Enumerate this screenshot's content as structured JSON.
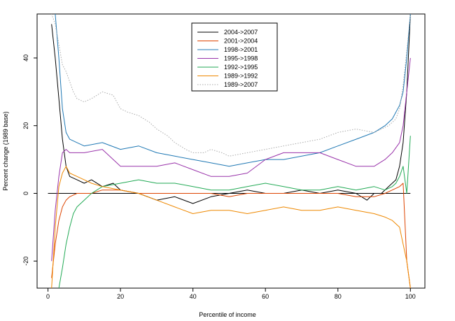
{
  "chart_data": {
    "type": "line",
    "title": "",
    "xlabel": "Percentile of income",
    "ylabel": "Percent change (1989 base)",
    "xlim": [
      -3,
      104
    ],
    "ylim": [
      -28,
      53
    ],
    "x_ticks": [
      0,
      20,
      40,
      60,
      80,
      100
    ],
    "y_ticks": [
      -20,
      0,
      20,
      40
    ],
    "grid": false,
    "legend_position": "top-center",
    "reference_line": 0,
    "series": [
      {
        "name": "2004->2007",
        "color": "#000000",
        "dash": "solid",
        "x": [
          1,
          2,
          3,
          4,
          5,
          6,
          8,
          10,
          12,
          15,
          18,
          20,
          25,
          30,
          35,
          40,
          45,
          50,
          55,
          60,
          65,
          70,
          75,
          80,
          85,
          88,
          90,
          92,
          94,
          96,
          97,
          98,
          99,
          100
        ],
        "y": [
          50,
          40,
          28,
          16,
          8,
          5,
          4,
          3,
          4,
          2,
          3,
          1,
          0,
          -2,
          -1,
          -3,
          -1,
          0,
          1,
          0,
          0,
          1,
          0,
          1,
          0,
          -2,
          0,
          0,
          2,
          4,
          8,
          15,
          30,
          53
        ]
      },
      {
        "name": "2001->2004",
        "color": "#dd4400",
        "dash": "solid",
        "x": [
          1,
          2,
          3,
          4,
          5,
          6,
          8,
          10,
          12,
          15,
          20,
          25,
          30,
          35,
          40,
          45,
          50,
          55,
          60,
          65,
          70,
          75,
          80,
          85,
          90,
          93,
          95,
          97,
          98,
          99,
          100
        ],
        "y": [
          -25,
          -15,
          -8,
          -4,
          -2,
          -1,
          0,
          0,
          0,
          1,
          1,
          0,
          0,
          0,
          0,
          0,
          -1,
          0,
          0,
          0,
          0,
          0,
          0,
          -1,
          -1,
          0,
          1,
          2,
          3,
          -20,
          -28
        ]
      },
      {
        "name": "1998->2001",
        "color": "#1f78b4",
        "dash": "solid",
        "x": [
          2,
          3,
          4,
          5,
          6,
          8,
          10,
          15,
          20,
          25,
          30,
          35,
          40,
          45,
          50,
          55,
          60,
          65,
          70,
          75,
          80,
          85,
          90,
          93,
          95,
          97,
          98,
          99,
          100
        ],
        "y": [
          53,
          40,
          25,
          18,
          16,
          15,
          14,
          15,
          13,
          14,
          12,
          11,
          10,
          9,
          8,
          9,
          10,
          10,
          11,
          12,
          14,
          16,
          18,
          20,
          22,
          26,
          30,
          40,
          53
        ]
      },
      {
        "name": "1995->1998",
        "color": "#9933aa",
        "dash": "solid",
        "x": [
          1,
          2,
          3,
          4,
          5,
          6,
          8,
          10,
          15,
          20,
          25,
          30,
          35,
          40,
          45,
          50,
          55,
          60,
          65,
          70,
          75,
          80,
          85,
          90,
          93,
          95,
          97,
          98,
          99,
          100
        ],
        "y": [
          -20,
          -5,
          5,
          12,
          13,
          12,
          12,
          12,
          13,
          8,
          8,
          8,
          9,
          7,
          5,
          5,
          6,
          10,
          12,
          12,
          12,
          10,
          8,
          8,
          10,
          12,
          15,
          20,
          30,
          40
        ]
      },
      {
        "name": "1992->1995",
        "color": "#22aa55",
        "dash": "solid",
        "x": [
          3,
          4,
          5,
          6,
          7,
          8,
          10,
          12,
          15,
          20,
          25,
          30,
          35,
          40,
          45,
          50,
          55,
          60,
          65,
          70,
          75,
          80,
          85,
          90,
          93,
          95,
          96,
          97,
          98,
          99,
          100
        ],
        "y": [
          -28,
          -22,
          -15,
          -10,
          -6,
          -4,
          -2,
          0,
          2,
          3,
          4,
          3,
          3,
          2,
          1,
          1,
          2,
          3,
          2,
          1,
          1,
          2,
          1,
          2,
          1,
          2,
          3,
          5,
          8,
          0,
          17
        ]
      },
      {
        "name": "1989->1992",
        "color": "#ee8800",
        "dash": "solid",
        "x": [
          1,
          2,
          3,
          4,
          5,
          6,
          8,
          10,
          12,
          15,
          20,
          25,
          30,
          35,
          40,
          45,
          50,
          55,
          60,
          65,
          70,
          75,
          80,
          85,
          90,
          93,
          95,
          97,
          98,
          99,
          100
        ],
        "y": [
          -28,
          -10,
          2,
          6,
          8,
          6,
          5,
          4,
          3,
          2,
          1,
          0,
          -2,
          -4,
          -6,
          -5,
          -5,
          -6,
          -5,
          -4,
          -5,
          -5,
          -4,
          -5,
          -6,
          -7,
          -8,
          -10,
          -15,
          -20,
          -28
        ]
      },
      {
        "name": "1989->2007",
        "color": "#aaaaaa",
        "dash": "dotted",
        "x": [
          1,
          2,
          3,
          4,
          5,
          6,
          7,
          8,
          10,
          12,
          15,
          18,
          20,
          22,
          25,
          28,
          30,
          33,
          35,
          38,
          40,
          43,
          45,
          48,
          50,
          55,
          60,
          65,
          70,
          75,
          80,
          85,
          90,
          92,
          94,
          96,
          97,
          98,
          99,
          100
        ],
        "y": [
          53,
          50,
          44,
          38,
          36,
          33,
          30,
          28,
          27,
          28,
          30,
          29,
          25,
          24,
          23,
          21,
          19,
          17,
          15,
          13,
          12,
          12,
          13,
          12,
          11,
          12,
          13,
          14,
          15,
          16,
          18,
          19,
          18,
          19,
          20,
          22,
          25,
          32,
          42,
          53
        ]
      }
    ]
  }
}
